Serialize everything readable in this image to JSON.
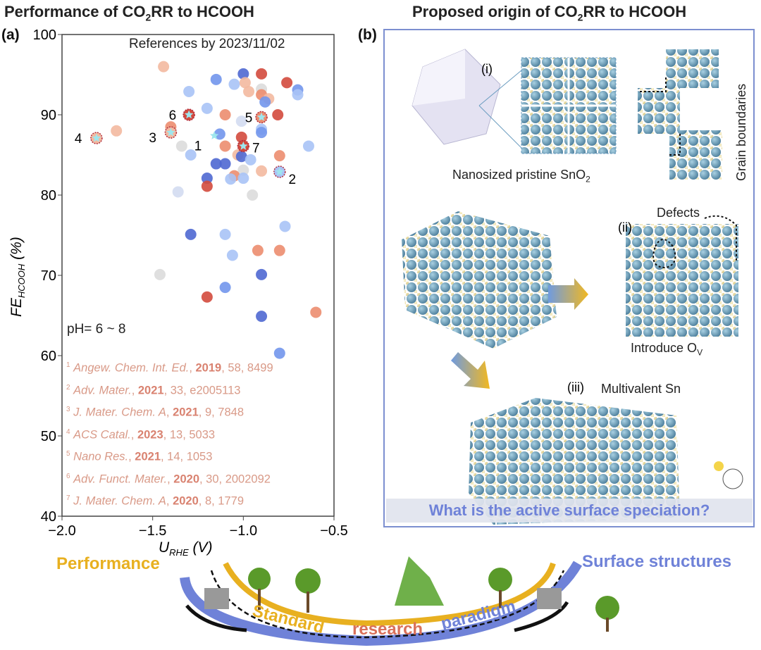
{
  "panel_a": {
    "title": "Performance of CO",
    "title_sub": "2",
    "title_end": "RR to HCOOH",
    "label": "(a)",
    "annotation_refs_date": "References by 2023/11/02",
    "annotation_ph": "pH= 6 ~ 8",
    "references": [
      {
        "num": "1",
        "journal": "Angew. Chem. Int. Ed.",
        "year": "2019",
        "rest": ", 58, 8499"
      },
      {
        "num": "2",
        "journal": "Adv. Mater.",
        "year": "2021",
        "rest": ", 33, e2005113"
      },
      {
        "num": "3",
        "journal": "J. Mater. Chem. A",
        "year": "2021",
        "rest": ", 9, 7848"
      },
      {
        "num": "4",
        "journal": "ACS Catal.",
        "year": "2023",
        "rest": ", 13, 5033"
      },
      {
        "num": "5",
        "journal": "Nano Res.",
        "year": "2021",
        "rest": ", 14, 1053"
      },
      {
        "num": "6",
        "journal": "Adv. Funct. Mater.",
        "year": "2020",
        "rest": ", 30, 2002092"
      },
      {
        "num": "7",
        "journal": "J. Mater. Chem. A",
        "year": "2020",
        "rest": ", 8, 1779"
      }
    ]
  },
  "chart_data": {
    "type": "scatter",
    "xlabel": "U_RHE (V)",
    "xlabel_main": "U",
    "xlabel_sub": "RHE",
    "xlabel_unit": " (V)",
    "ylabel_main": "FE",
    "ylabel_sub": "HCOOH",
    "ylabel_unit": " (%)",
    "xlim": [
      -2.0,
      -0.5
    ],
    "ylim": [
      40,
      100
    ],
    "xticks": [
      "−2.0",
      "−1.5",
      "−1.0",
      "−0.5"
    ],
    "yticks": [
      "40",
      "50",
      "60",
      "70",
      "80",
      "90",
      "100"
    ],
    "grid": false,
    "colors": {
      "dblue": "#4f68d2",
      "blue": "#7296ec",
      "lblue": "#a9c3f6",
      "vlblue": "#d3dcf1",
      "grey": "#dcdcdc",
      "lsalmon": "#f3b9a0",
      "salmon": "#ec8d6f",
      "red": "#d34a3d"
    },
    "points": [
      {
        "x": -1.44,
        "y": 96.0,
        "c": "lsalmon"
      },
      {
        "x": -1.0,
        "y": 95.1,
        "c": "dblue"
      },
      {
        "x": -0.9,
        "y": 95.1,
        "c": "red"
      },
      {
        "x": -1.15,
        "y": 94.4,
        "c": "blue"
      },
      {
        "x": -1.05,
        "y": 93.8,
        "c": "lblue"
      },
      {
        "x": -0.99,
        "y": 94.0,
        "c": "lsalmon"
      },
      {
        "x": -0.76,
        "y": 94.0,
        "c": "red"
      },
      {
        "x": -1.3,
        "y": 92.9,
        "c": "lblue"
      },
      {
        "x": -0.97,
        "y": 92.9,
        "c": "lsalmon"
      },
      {
        "x": -0.9,
        "y": 93.2,
        "c": "grey"
      },
      {
        "x": -0.7,
        "y": 93.1,
        "c": "blue"
      },
      {
        "x": -0.7,
        "y": 92.5,
        "c": "lblue"
      },
      {
        "x": -0.9,
        "y": 92.5,
        "c": "salmon"
      },
      {
        "x": -0.86,
        "y": 92.0,
        "c": "lsalmon"
      },
      {
        "x": -0.88,
        "y": 91.6,
        "c": "blue"
      },
      {
        "x": -1.2,
        "y": 90.8,
        "c": "lblue"
      },
      {
        "x": -1.1,
        "y": 90.0,
        "c": "salmon"
      },
      {
        "x": -0.81,
        "y": 90.0,
        "c": "red"
      },
      {
        "x": -1.01,
        "y": 89.2,
        "c": "vlblue"
      },
      {
        "x": -1.4,
        "y": 88.5,
        "c": "salmon"
      },
      {
        "x": -1.7,
        "y": 88.0,
        "c": "lsalmon"
      },
      {
        "x": -0.9,
        "y": 88.2,
        "c": "lblue"
      },
      {
        "x": -0.9,
        "y": 87.8,
        "c": "blue"
      },
      {
        "x": -1.13,
        "y": 87.6,
        "c": "blue"
      },
      {
        "x": -1.01,
        "y": 87.2,
        "c": "red"
      },
      {
        "x": -1.34,
        "y": 86.1,
        "c": "grey"
      },
      {
        "x": -1.1,
        "y": 86.1,
        "c": "salmon"
      },
      {
        "x": -0.64,
        "y": 86.1,
        "c": "lblue"
      },
      {
        "x": -1.29,
        "y": 85.0,
        "c": "lblue"
      },
      {
        "x": -1.03,
        "y": 85.0,
        "c": "lsalmon"
      },
      {
        "x": -1.01,
        "y": 84.8,
        "c": "dblue"
      },
      {
        "x": -0.96,
        "y": 84.4,
        "c": "lblue"
      },
      {
        "x": -0.8,
        "y": 84.9,
        "c": "salmon"
      },
      {
        "x": -1.15,
        "y": 83.9,
        "c": "dblue"
      },
      {
        "x": -1.1,
        "y": 83.9,
        "c": "dblue"
      },
      {
        "x": -1.0,
        "y": 83.1,
        "c": "grey"
      },
      {
        "x": -0.9,
        "y": 83.0,
        "c": "lsalmon"
      },
      {
        "x": -1.2,
        "y": 82.1,
        "c": "dblue"
      },
      {
        "x": -1.05,
        "y": 82.4,
        "c": "salmon"
      },
      {
        "x": -1.07,
        "y": 82.0,
        "c": "lblue"
      },
      {
        "x": -1.0,
        "y": 82.1,
        "c": "lblue"
      },
      {
        "x": -1.2,
        "y": 81.1,
        "c": "red"
      },
      {
        "x": -1.36,
        "y": 80.4,
        "c": "vlblue"
      },
      {
        "x": -0.95,
        "y": 80.0,
        "c": "grey"
      },
      {
        "x": -1.29,
        "y": 75.1,
        "c": "dblue"
      },
      {
        "x": -1.1,
        "y": 75.1,
        "c": "lblue"
      },
      {
        "x": -0.77,
        "y": 76.1,
        "c": "lblue"
      },
      {
        "x": -0.92,
        "y": 73.1,
        "c": "salmon"
      },
      {
        "x": -0.8,
        "y": 73.1,
        "c": "salmon"
      },
      {
        "x": -1.06,
        "y": 72.5,
        "c": "lblue"
      },
      {
        "x": -1.46,
        "y": 70.1,
        "c": "grey"
      },
      {
        "x": -0.9,
        "y": 70.1,
        "c": "dblue"
      },
      {
        "x": -1.1,
        "y": 68.5,
        "c": "blue"
      },
      {
        "x": -1.2,
        "y": 67.3,
        "c": "red"
      },
      {
        "x": -0.6,
        "y": 65.4,
        "c": "salmon"
      },
      {
        "x": -0.9,
        "y": 64.9,
        "c": "dblue"
      },
      {
        "x": -0.8,
        "y": 60.3,
        "c": "blue"
      }
    ],
    "highlighted": [
      {
        "label": "1",
        "x": -1.16,
        "y": 87.4,
        "c": "none"
      },
      {
        "label": "2",
        "x": -0.8,
        "y": 82.9,
        "c": "lblue"
      },
      {
        "label": "3",
        "x": -1.4,
        "y": 87.8,
        "c": "lsalmon"
      },
      {
        "label": "4",
        "x": -1.81,
        "y": 87.1,
        "c": "lsalmon"
      },
      {
        "label": "5",
        "x": -0.9,
        "y": 89.7,
        "c": "salmon"
      },
      {
        "label": "6",
        "x": -1.3,
        "y": 90.0,
        "c": "red"
      },
      {
        "label": "7",
        "x": -1.0,
        "y": 86.1,
        "c": "red"
      }
    ]
  },
  "panel_b": {
    "title": "Proposed origin of CO",
    "title_sub": "2",
    "title_end": "RR to HCOOH",
    "label": "(b)",
    "i_label": "(i)",
    "pristine": "Nanosized pristine SnO",
    "pristine_sub": "2",
    "grain": "Grain boundaries",
    "ii_label": "(ii)",
    "defects": "Defects",
    "introduce": "Introduce O",
    "introduce_sub": "V",
    "iii_label": "(iii)",
    "multivalent": "Multivalent Sn",
    "question": "What is the active surface speciation?"
  },
  "bottom": {
    "performance": "Performance",
    "surface": "Surface structures",
    "w1": "Standard",
    "w2": "research",
    "w3": "paradigm",
    "colors": {
      "yellow": "#e8b020",
      "red": "#d9705a",
      "blue": "#6f82d8"
    }
  }
}
